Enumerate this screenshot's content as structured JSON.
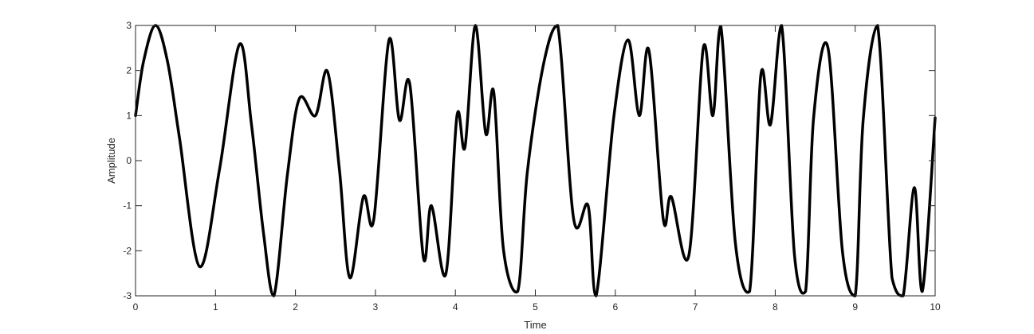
{
  "chart_data": {
    "type": "line",
    "title": "",
    "xlabel": "Time",
    "ylabel": "Amplitude",
    "xlim": [
      0,
      10
    ],
    "ylim": [
      -3,
      3
    ],
    "x_ticks": [
      0,
      1,
      2,
      3,
      4,
      5,
      6,
      7,
      8,
      9,
      10
    ],
    "y_ticks": [
      -3,
      -2,
      -1,
      0,
      1,
      2,
      3
    ],
    "grid": false,
    "box": true,
    "line_color": "#000000",
    "series": [
      {
        "x": [
          0,
          0.1,
          0.25,
          0.4,
          0.55,
          0.8,
          1.05,
          1.3,
          1.45,
          1.6,
          1.73,
          1.9,
          2.05,
          2.25,
          2.4,
          2.55,
          2.68,
          2.85,
          2.98,
          3.17,
          3.3,
          3.43,
          3.6,
          3.7,
          3.88,
          4.02,
          4.12,
          4.25,
          4.38,
          4.48,
          4.6,
          4.78,
          4.9,
          5.1,
          5.28,
          5.48,
          5.66,
          5.76,
          5.98,
          6.16,
          6.3,
          6.42,
          6.6,
          6.7,
          6.92,
          7.1,
          7.22,
          7.32,
          7.5,
          7.68,
          7.82,
          7.94,
          8.08,
          8.24,
          8.38,
          8.48,
          8.66,
          8.84,
          9.0,
          9.1,
          9.28,
          9.46,
          9.6,
          9.74,
          9.84,
          10.0
        ],
        "y": [
          1,
          2.2,
          3,
          2.2,
          0.5,
          -2.35,
          -0.2,
          2.58,
          0.8,
          -1.6,
          -3,
          -0.3,
          1.38,
          1.0,
          1.98,
          -0.2,
          -2.6,
          -0.8,
          -1.3,
          2.68,
          0.9,
          1.7,
          -2.15,
          -1.0,
          -2.52,
          1.0,
          0.3,
          3.0,
          0.6,
          1.52,
          -1.95,
          -2.9,
          -0.25,
          2.12,
          3.0,
          -1.3,
          -1.0,
          -3.0,
          0.95,
          2.68,
          1.0,
          2.45,
          -1.3,
          -0.8,
          -2.1,
          2.5,
          1.0,
          2.98,
          -1.8,
          -2.9,
          1.9,
          0.8,
          3.0,
          -2.08,
          -2.9,
          0.95,
          2.5,
          -2.0,
          -3.0,
          0.9,
          3.0,
          -2.6,
          -3.0,
          -0.6,
          -2.9,
          0.95
        ]
      }
    ]
  }
}
